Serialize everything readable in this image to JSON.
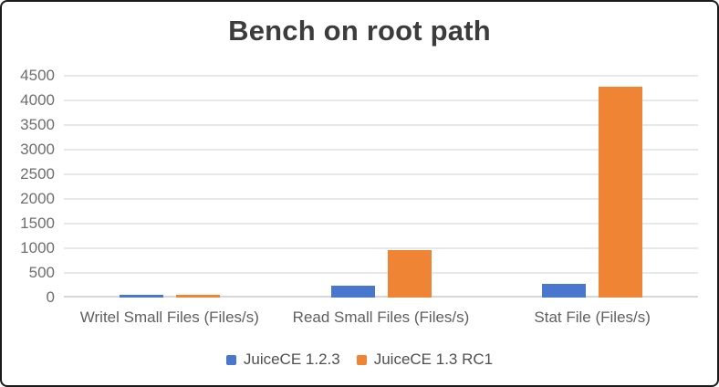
{
  "chart_data": {
    "type": "bar",
    "title": "Bench on root path",
    "categories": [
      "Writel Small Files (Files/s)",
      "Read Small Files (Files/s)",
      "Stat File (Files/s)"
    ],
    "series": [
      {
        "name": "JuiceCE 1.2.3",
        "color": "#4a77ce",
        "values": [
          60,
          240,
          270
        ]
      },
      {
        "name": "JuiceCE 1.3 RC1",
        "color": "#ee8434",
        "values": [
          50,
          960,
          4280
        ]
      }
    ],
    "ylim": [
      0,
      4500
    ],
    "yticks": [
      0,
      500,
      1000,
      1500,
      2000,
      2500,
      3000,
      3500,
      4000,
      4500
    ],
    "grid": true,
    "legend_position": "bottom"
  }
}
